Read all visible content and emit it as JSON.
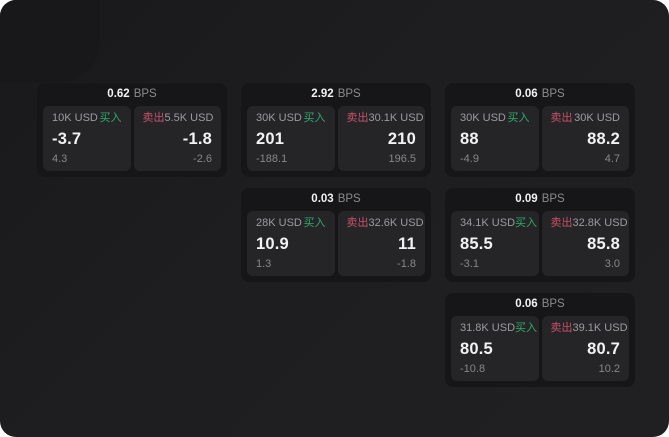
{
  "colors": {
    "page_bg": "#1e1e20",
    "card_bg": "#161618",
    "panel_bg": "#252528",
    "buy_green": "#2fa96b",
    "sell_red": "#c9506a"
  },
  "labels": {
    "bps": "BPS",
    "buy": "买入",
    "sell": "卖出"
  },
  "cards": [
    {
      "bps": "0.62",
      "buy": {
        "amount": "10K USD",
        "value": "-3.7",
        "delta": "4.3"
      },
      "sell": {
        "amount": "5.5K USD",
        "value": "-1.8",
        "delta": "-2.6"
      }
    },
    {
      "bps": "2.92",
      "buy": {
        "amount": "30K USD",
        "value": "201",
        "delta": "-188.1"
      },
      "sell": {
        "amount": "30.1K USD",
        "value": "210",
        "delta": "196.5"
      }
    },
    {
      "bps": "0.06",
      "buy": {
        "amount": "30K USD",
        "value": "88",
        "delta": "-4.9"
      },
      "sell": {
        "amount": "30K USD",
        "value": "88.2",
        "delta": "4.7"
      }
    },
    {
      "bps": "0.03",
      "buy": {
        "amount": "28K USD",
        "value": "10.9",
        "delta": "1.3"
      },
      "sell": {
        "amount": "32.6K USD",
        "value": "11",
        "delta": "-1.8"
      }
    },
    {
      "bps": "0.09",
      "buy": {
        "amount": "34.1K USD",
        "value": "85.5",
        "delta": "-3.1"
      },
      "sell": {
        "amount": "32.8K USD",
        "value": "85.8",
        "delta": "3.0"
      }
    },
    {
      "bps": "0.06",
      "buy": {
        "amount": "31.8K USD",
        "value": "80.5",
        "delta": "-10.8"
      },
      "sell": {
        "amount": "39.1K USD",
        "value": "80.7",
        "delta": "10.2"
      }
    }
  ]
}
